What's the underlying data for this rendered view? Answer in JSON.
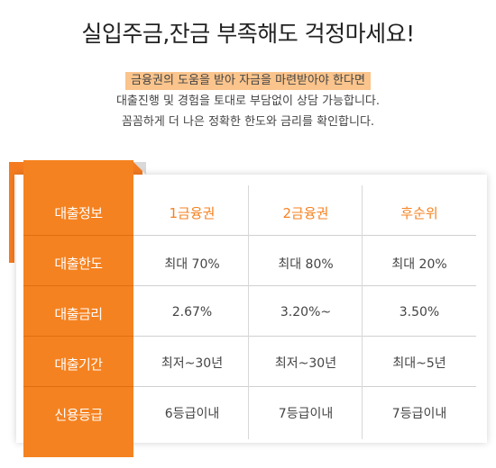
{
  "headline": "실입주금,잔금 부족해도 걱정마세요!",
  "intro": {
    "highlight": "금융권의 도움을 받아 자금을 마련받아야 한다면",
    "line2": "대출진행 및 경험을 토대로 부담없이 상담 가능합니다.",
    "line3": "꼼꼼하게 더 나은 정확한 한도와 금리를 확인합니다."
  },
  "colors": {
    "accent": "#f58220",
    "highlight": "#fac48c"
  },
  "table": {
    "row_labels": [
      "대출정보",
      "대출한도",
      "대출금리",
      "대출기간",
      "신용등급"
    ],
    "columns": [
      "1금융권",
      "2금융권",
      "후순위"
    ],
    "rows": [
      [
        "최대 70%",
        "최대 80%",
        "최대 20%"
      ],
      [
        "2.67%",
        "3.20%~",
        "3.50%"
      ],
      [
        "최저~30년",
        "최저~30년",
        "최대~5년"
      ],
      [
        "6등급이내",
        "7등급이내",
        "7등급이내"
      ]
    ]
  }
}
